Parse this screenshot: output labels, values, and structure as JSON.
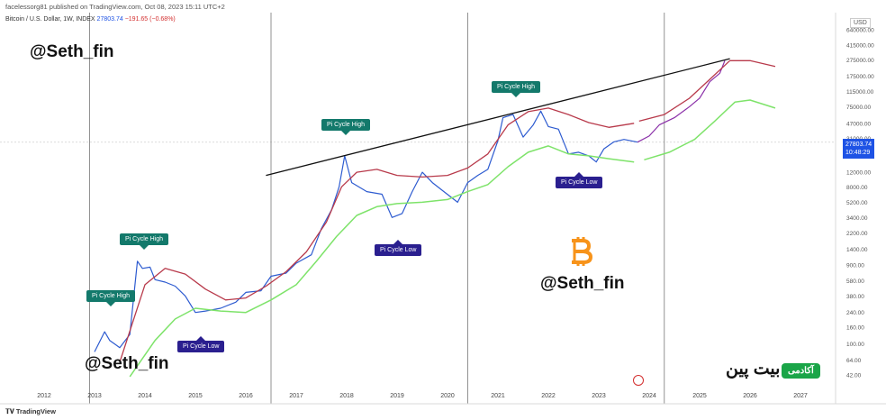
{
  "header": {
    "publisher": "facelessorg81 published on TradingView.com, Oct 08, 2023 15:11 UTC+2",
    "symbol": "Bitcoin / U.S. Dollar, 1W, INDEX",
    "last": "27803.74",
    "change": "−191.65 (−0.68%)"
  },
  "currency": "USD",
  "watermarks": [
    "@Seth_fin",
    "@Seth_fin",
    "@Seth_fin"
  ],
  "price_box": {
    "price": "27803.74",
    "countdown": "10:48:29"
  },
  "brand": {
    "tv": "TradingView",
    "academy_label": "آکادمی",
    "academy_name": "بیت پین"
  },
  "colors": {
    "price": "#2d5bd0",
    "upper": "#b83a4b",
    "lower": "#7ee36a",
    "projection": "#8a2fa8",
    "trend": "#111111",
    "high_label": "#13796b",
    "low_label": "#2a1f8f",
    "btc": "#f7931a"
  },
  "chart_data": {
    "type": "line",
    "x_axis": {
      "ticks": [
        "2012",
        "2013",
        "2014",
        "2015",
        "2016",
        "2017",
        "2018",
        "2019",
        "2020",
        "2021",
        "2022",
        "2023",
        "2024",
        "2025",
        "2026",
        "2027"
      ]
    },
    "y_axis": {
      "scale": "log",
      "ticks": [
        "640000.00",
        "415000.00",
        "275000.00",
        "175000.00",
        "115000.00",
        "75000.00",
        "47000.00",
        "31000.00",
        "19000.00",
        "12000.00",
        "8000.00",
        "5200.00",
        "3400.00",
        "2200.00",
        "1400.00",
        "900.00",
        "580.00",
        "380.00",
        "240.00",
        "160.00",
        "100.00",
        "64.00",
        "42.00"
      ]
    },
    "halving_lines": [
      2012.9,
      2016.5,
      2020.4,
      2024.3
    ],
    "series": [
      {
        "points": [
          [
            2013.0,
            80
          ],
          [
            2013.2,
            140
          ],
          [
            2013.3,
            110
          ],
          [
            2013.5,
            90
          ],
          [
            2013.7,
            130
          ],
          [
            2013.85,
            1000
          ],
          [
            2013.95,
            820
          ],
          [
            2014.1,
            850
          ],
          [
            2014.2,
            600
          ],
          [
            2014.4,
            560
          ],
          [
            2014.6,
            500
          ],
          [
            2014.8,
            380
          ],
          [
            2015.0,
            240
          ],
          [
            2015.2,
            250
          ],
          [
            2015.5,
            270
          ],
          [
            2015.8,
            320
          ],
          [
            2016.0,
            420
          ],
          [
            2016.3,
            440
          ],
          [
            2016.5,
            660
          ],
          [
            2016.8,
            720
          ],
          [
            2017.0,
            950
          ],
          [
            2017.3,
            1200
          ],
          [
            2017.5,
            2500
          ],
          [
            2017.7,
            4200
          ],
          [
            2017.85,
            8000
          ],
          [
            2017.96,
            19000
          ],
          [
            2018.1,
            9000
          ],
          [
            2018.4,
            7000
          ],
          [
            2018.7,
            6500
          ],
          [
            2018.9,
            3400
          ],
          [
            2019.1,
            3800
          ],
          [
            2019.3,
            7000
          ],
          [
            2019.5,
            12000
          ],
          [
            2019.7,
            9000
          ],
          [
            2019.9,
            7200
          ],
          [
            2020.2,
            5200
          ],
          [
            2020.4,
            9000
          ],
          [
            2020.6,
            11000
          ],
          [
            2020.8,
            13000
          ],
          [
            2021.0,
            29000
          ],
          [
            2021.1,
            55000
          ],
          [
            2021.3,
            60000
          ],
          [
            2021.5,
            32000
          ],
          [
            2021.7,
            45000
          ],
          [
            2021.85,
            66000
          ],
          [
            2022.0,
            43000
          ],
          [
            2022.2,
            40000
          ],
          [
            2022.4,
            20000
          ],
          [
            2022.6,
            21000
          ],
          [
            2022.8,
            19000
          ],
          [
            2022.95,
            16000
          ],
          [
            2023.1,
            23000
          ],
          [
            2023.3,
            28000
          ],
          [
            2023.5,
            30000
          ],
          [
            2023.77,
            27803
          ]
        ]
      },
      {
        "points": [
          [
            2023.77,
            27803
          ],
          [
            2024.0,
            33000
          ],
          [
            2024.2,
            45000
          ],
          [
            2024.5,
            55000
          ],
          [
            2024.8,
            75000
          ],
          [
            2025.0,
            95000
          ],
          [
            2025.2,
            150000
          ],
          [
            2025.4,
            190000
          ],
          [
            2025.5,
            270000
          ]
        ]
      },
      {
        "points": [
          [
            2013.5,
            60
          ],
          [
            2013.8,
            220
          ],
          [
            2014.0,
            520
          ],
          [
            2014.4,
            820
          ],
          [
            2014.8,
            700
          ],
          [
            2015.2,
            460
          ],
          [
            2015.6,
            340
          ],
          [
            2016.0,
            360
          ],
          [
            2016.4,
            500
          ],
          [
            2016.8,
            750
          ],
          [
            2017.2,
            1300
          ],
          [
            2017.6,
            3000
          ],
          [
            2017.9,
            8000
          ],
          [
            2018.2,
            12000
          ],
          [
            2018.6,
            13000
          ],
          [
            2019.0,
            11000
          ],
          [
            2019.5,
            10500
          ],
          [
            2020.0,
            11000
          ],
          [
            2020.4,
            13500
          ],
          [
            2020.8,
            20000
          ],
          [
            2021.2,
            45000
          ],
          [
            2021.6,
            65000
          ],
          [
            2022.0,
            72000
          ],
          [
            2022.4,
            60000
          ],
          [
            2022.8,
            48000
          ],
          [
            2023.2,
            42000
          ],
          [
            2023.7,
            47000
          ]
        ]
      },
      {
        "points": [
          [
            2023.8,
            50000
          ],
          [
            2024.3,
            60000
          ],
          [
            2024.8,
            95000
          ],
          [
            2025.2,
            160000
          ],
          [
            2025.6,
            270000
          ],
          [
            2026.0,
            270000
          ],
          [
            2026.5,
            230000
          ]
        ]
      },
      {
        "points": [
          [
            2013.7,
            40
          ],
          [
            2014.2,
            110
          ],
          [
            2014.6,
            200
          ],
          [
            2015.0,
            270
          ],
          [
            2015.5,
            250
          ],
          [
            2016.0,
            240
          ],
          [
            2016.5,
            340
          ],
          [
            2017.0,
            520
          ],
          [
            2017.4,
            1000
          ],
          [
            2017.8,
            2000
          ],
          [
            2018.2,
            3600
          ],
          [
            2018.6,
            4600
          ],
          [
            2019.0,
            5000
          ],
          [
            2019.5,
            5200
          ],
          [
            2020.0,
            5600
          ],
          [
            2020.4,
            7000
          ],
          [
            2020.8,
            8500
          ],
          [
            2021.2,
            14000
          ],
          [
            2021.6,
            21000
          ],
          [
            2022.0,
            25000
          ],
          [
            2022.4,
            20000
          ],
          [
            2022.8,
            19000
          ],
          [
            2023.2,
            17500
          ],
          [
            2023.7,
            16000
          ]
        ]
      },
      {
        "points": [
          [
            2023.9,
            17000
          ],
          [
            2024.4,
            21000
          ],
          [
            2024.9,
            30000
          ],
          [
            2025.3,
            50000
          ],
          [
            2025.7,
            85000
          ],
          [
            2026.0,
            90000
          ],
          [
            2026.5,
            72000
          ]
        ]
      }
    ],
    "trendline": [
      [
        2016.4,
        11000
      ],
      [
        2025.6,
        285000
      ]
    ],
    "annotations": [
      {
        "text": "Pi Cycle High",
        "kind": "high"
      },
      {
        "text": "Pi Cycle High",
        "kind": "high"
      },
      {
        "text": "Pi Cycle High",
        "kind": "high"
      },
      {
        "text": "Pi Cycle High",
        "kind": "high"
      },
      {
        "text": "Pi Cycle Low",
        "kind": "low"
      },
      {
        "text": "Pi Cycle Low",
        "kind": "low"
      },
      {
        "text": "Pi Cycle Low",
        "kind": "low"
      }
    ]
  }
}
